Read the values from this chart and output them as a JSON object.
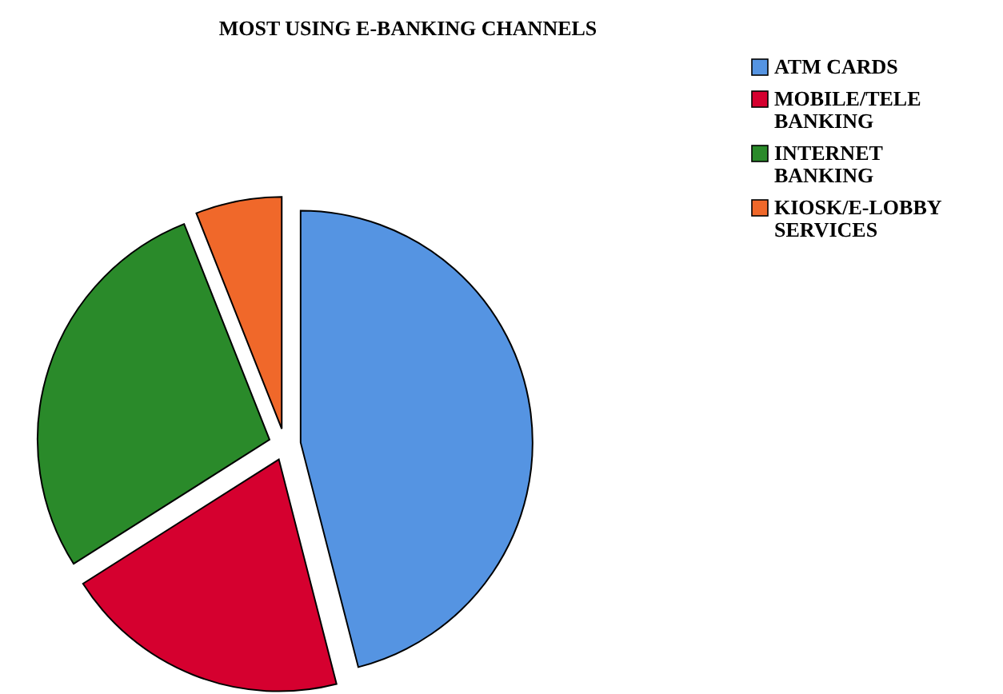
{
  "chart_data": {
    "type": "pie",
    "title": "MOST USING E-BANKING CHANNELS",
    "categories": [
      "ATM CARDS",
      "MOBILE/TELE BANKING",
      "INTERNET BANKING",
      "KIOSK/E-LOBBY SERVICES"
    ],
    "values": [
      46,
      20,
      28,
      6
    ],
    "colors": [
      "#5594e2",
      "#d5002f",
      "#2a8a2a",
      "#f0682a"
    ],
    "legend": "top right"
  }
}
